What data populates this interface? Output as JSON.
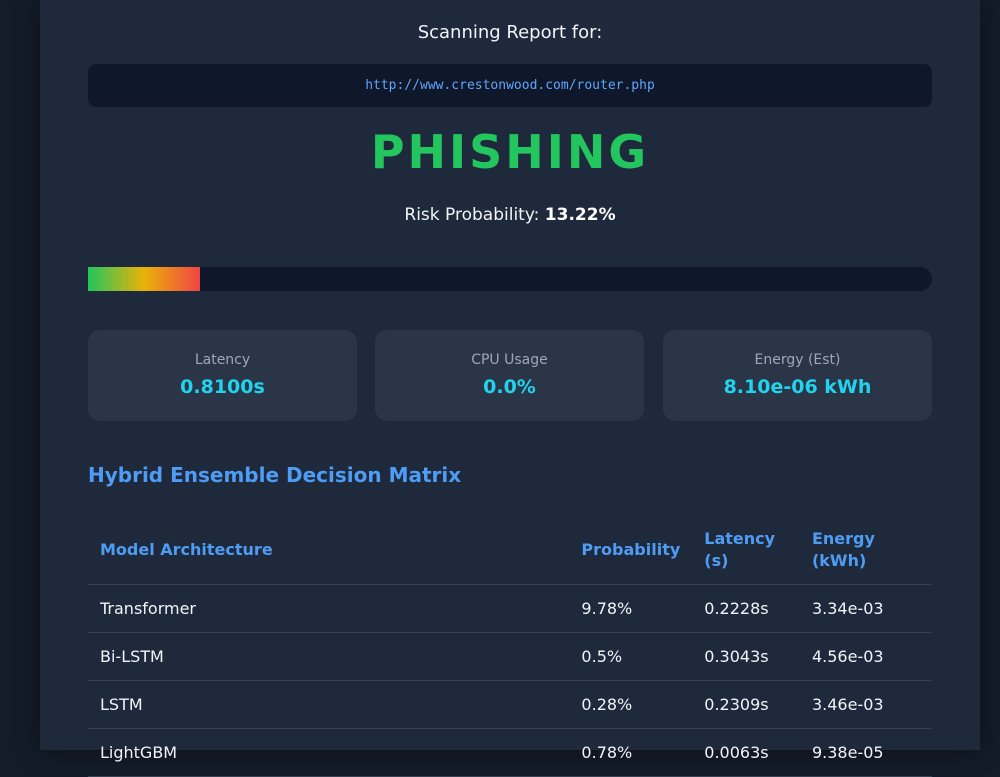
{
  "report": {
    "heading": "Scanning Report for:",
    "url": "http://www.crestonwood.com/router.php",
    "verdict": "PHISHING",
    "verdict_color": "#22c55e",
    "risk_label": "Risk Probability:",
    "risk_value": "13.22%",
    "risk_fraction": 0.1322
  },
  "metrics": [
    {
      "label": "Latency",
      "value": "0.8100s"
    },
    {
      "label": "CPU Usage",
      "value": "0.0%"
    },
    {
      "label": "Energy (Est)",
      "value": "8.10e-06 kWh"
    }
  ],
  "matrix": {
    "title": "Hybrid Ensemble Decision Matrix",
    "headers": {
      "model": "Model Architecture",
      "probability": "Probability",
      "latency": "Latency (s)",
      "energy": "Energy (kWh)"
    },
    "rows": [
      {
        "model": "Transformer",
        "probability": "9.78%",
        "latency": "0.2228s",
        "energy": "3.34e-03"
      },
      {
        "model": "Bi-LSTM",
        "probability": "0.5%",
        "latency": "0.3043s",
        "energy": "4.56e-03"
      },
      {
        "model": "LSTM",
        "probability": "0.28%",
        "latency": "0.2309s",
        "energy": "3.46e-03"
      },
      {
        "model": "LightGBM",
        "probability": "0.78%",
        "latency": "0.0063s",
        "energy": "9.38e-05"
      }
    ]
  }
}
